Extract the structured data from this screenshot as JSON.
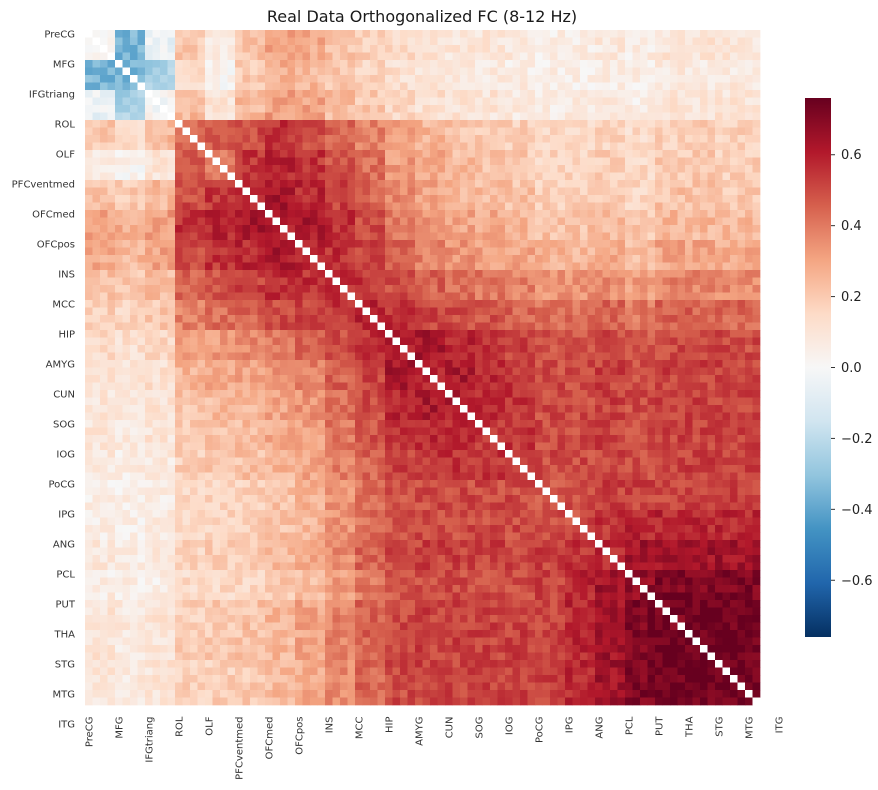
{
  "chart_data": {
    "type": "heatmap",
    "title": "Real Data Orthogonalized FC (8-12 Hz)",
    "matrix_size": 90,
    "row_labels": [
      "PreCG",
      "MFG",
      "IFGtriang",
      "ROL",
      "OLF",
      "PFCventmed",
      "OFCmed",
      "OFCpos",
      "INS",
      "MCC",
      "HIP",
      "AMYG",
      "CUN",
      "SOG",
      "IOG",
      "PoCG",
      "IPG",
      "ANG",
      "PCL",
      "PUT",
      "THA",
      "STG",
      "MTG",
      "ITG"
    ],
    "col_labels": [
      "PreCG",
      "MFG",
      "IFGtriang",
      "ROL",
      "OLF",
      "PFCventmed",
      "OFCmed",
      "OFCpos",
      "INS",
      "MCC",
      "HIP",
      "AMYG",
      "CUN",
      "SOG",
      "IOG",
      "PoCG",
      "IPG",
      "ANG",
      "PCL",
      "PUT",
      "THA",
      "STG",
      "MTG",
      "ITG"
    ],
    "label_step": 4,
    "colormap": "RdBu_r",
    "colorbar": {
      "vmin": -0.76,
      "vmax": 0.76,
      "ticks": [
        -0.6,
        -0.4,
        -0.2,
        0.0,
        0.2,
        0.4,
        0.6
      ],
      "tick_labels": [
        "−0.6",
        "−0.4",
        "−0.2",
        "0.0",
        "0.2",
        "0.4",
        "0.6"
      ]
    },
    "diagonal": "masked",
    "block_values": [
      [
        0.05,
        -0.35,
        -0.05,
        0.2,
        0.05,
        0.22,
        0.3,
        0.28,
        0.22,
        0.18,
        0.14,
        0.12,
        0.1,
        0.1,
        0.08,
        0.06,
        0.06,
        0.08,
        0.06,
        0.1,
        0.1,
        0.1,
        0.1,
        0.1
      ],
      [
        -0.35,
        -0.35,
        -0.25,
        0.15,
        0.02,
        0.2,
        0.28,
        0.25,
        0.2,
        0.16,
        0.12,
        0.1,
        0.08,
        0.08,
        0.06,
        0.05,
        0.05,
        0.06,
        0.05,
        0.08,
        0.08,
        0.08,
        0.08,
        0.08
      ],
      [
        -0.05,
        -0.25,
        0.0,
        0.25,
        0.1,
        0.25,
        0.32,
        0.3,
        0.24,
        0.2,
        0.15,
        0.12,
        0.1,
        0.1,
        0.08,
        0.06,
        0.06,
        0.08,
        0.06,
        0.1,
        0.1,
        0.1,
        0.1,
        0.1
      ],
      [
        0.2,
        0.15,
        0.25,
        0.45,
        0.45,
        0.5,
        0.55,
        0.5,
        0.45,
        0.38,
        0.3,
        0.25,
        0.22,
        0.2,
        0.18,
        0.15,
        0.15,
        0.16,
        0.14,
        0.18,
        0.18,
        0.18,
        0.16,
        0.16
      ],
      [
        0.05,
        0.02,
        0.1,
        0.45,
        0.4,
        0.55,
        0.58,
        0.55,
        0.48,
        0.42,
        0.32,
        0.28,
        0.24,
        0.22,
        0.2,
        0.16,
        0.16,
        0.18,
        0.15,
        0.2,
        0.2,
        0.18,
        0.18,
        0.18
      ],
      [
        0.22,
        0.2,
        0.25,
        0.5,
        0.55,
        0.58,
        0.62,
        0.58,
        0.52,
        0.45,
        0.36,
        0.3,
        0.26,
        0.24,
        0.22,
        0.18,
        0.18,
        0.2,
        0.16,
        0.22,
        0.22,
        0.2,
        0.2,
        0.2
      ],
      [
        0.3,
        0.28,
        0.32,
        0.55,
        0.58,
        0.62,
        0.6,
        0.62,
        0.56,
        0.5,
        0.4,
        0.34,
        0.3,
        0.28,
        0.25,
        0.22,
        0.22,
        0.24,
        0.2,
        0.25,
        0.25,
        0.24,
        0.24,
        0.24
      ],
      [
        0.28,
        0.25,
        0.3,
        0.5,
        0.55,
        0.58,
        0.62,
        0.58,
        0.56,
        0.52,
        0.44,
        0.38,
        0.34,
        0.32,
        0.3,
        0.26,
        0.26,
        0.28,
        0.24,
        0.3,
        0.3,
        0.28,
        0.28,
        0.28
      ],
      [
        0.22,
        0.2,
        0.24,
        0.45,
        0.48,
        0.52,
        0.56,
        0.56,
        0.55,
        0.55,
        0.5,
        0.45,
        0.42,
        0.4,
        0.38,
        0.34,
        0.34,
        0.36,
        0.32,
        0.38,
        0.38,
        0.36,
        0.36,
        0.36
      ],
      [
        0.18,
        0.16,
        0.2,
        0.38,
        0.42,
        0.45,
        0.5,
        0.52,
        0.55,
        0.58,
        0.56,
        0.52,
        0.5,
        0.48,
        0.45,
        0.42,
        0.42,
        0.44,
        0.4,
        0.45,
        0.45,
        0.44,
        0.44,
        0.44
      ],
      [
        0.14,
        0.12,
        0.15,
        0.3,
        0.32,
        0.36,
        0.4,
        0.44,
        0.5,
        0.56,
        0.6,
        0.62,
        0.58,
        0.55,
        0.52,
        0.48,
        0.48,
        0.5,
        0.46,
        0.5,
        0.5,
        0.5,
        0.5,
        0.5
      ],
      [
        0.12,
        0.1,
        0.12,
        0.25,
        0.28,
        0.3,
        0.34,
        0.38,
        0.45,
        0.52,
        0.62,
        0.6,
        0.62,
        0.58,
        0.55,
        0.5,
        0.5,
        0.52,
        0.48,
        0.52,
        0.52,
        0.52,
        0.52,
        0.52
      ],
      [
        0.1,
        0.08,
        0.1,
        0.22,
        0.24,
        0.26,
        0.3,
        0.34,
        0.42,
        0.5,
        0.58,
        0.62,
        0.6,
        0.58,
        0.55,
        0.5,
        0.5,
        0.52,
        0.5,
        0.52,
        0.52,
        0.52,
        0.52,
        0.52
      ],
      [
        0.1,
        0.08,
        0.1,
        0.2,
        0.22,
        0.24,
        0.28,
        0.32,
        0.4,
        0.48,
        0.55,
        0.58,
        0.58,
        0.55,
        0.55,
        0.5,
        0.5,
        0.52,
        0.5,
        0.52,
        0.52,
        0.52,
        0.52,
        0.52
      ],
      [
        0.08,
        0.06,
        0.08,
        0.18,
        0.2,
        0.22,
        0.25,
        0.3,
        0.38,
        0.45,
        0.52,
        0.55,
        0.55,
        0.55,
        0.52,
        0.5,
        0.5,
        0.52,
        0.5,
        0.52,
        0.52,
        0.52,
        0.52,
        0.52
      ],
      [
        0.06,
        0.05,
        0.06,
        0.15,
        0.16,
        0.18,
        0.22,
        0.26,
        0.34,
        0.42,
        0.48,
        0.5,
        0.5,
        0.5,
        0.5,
        0.48,
        0.5,
        0.52,
        0.52,
        0.52,
        0.52,
        0.52,
        0.52,
        0.52
      ],
      [
        0.06,
        0.05,
        0.06,
        0.15,
        0.16,
        0.18,
        0.22,
        0.26,
        0.34,
        0.42,
        0.48,
        0.5,
        0.5,
        0.5,
        0.5,
        0.5,
        0.5,
        0.55,
        0.58,
        0.58,
        0.58,
        0.58,
        0.58,
        0.58
      ],
      [
        0.08,
        0.06,
        0.08,
        0.16,
        0.18,
        0.2,
        0.24,
        0.28,
        0.36,
        0.44,
        0.5,
        0.52,
        0.52,
        0.52,
        0.52,
        0.52,
        0.55,
        0.58,
        0.64,
        0.64,
        0.64,
        0.64,
        0.64,
        0.64
      ],
      [
        0.06,
        0.05,
        0.06,
        0.14,
        0.15,
        0.16,
        0.2,
        0.24,
        0.32,
        0.4,
        0.46,
        0.48,
        0.5,
        0.5,
        0.5,
        0.52,
        0.58,
        0.64,
        0.68,
        0.72,
        0.72,
        0.72,
        0.72,
        0.72
      ],
      [
        0.1,
        0.08,
        0.1,
        0.18,
        0.2,
        0.22,
        0.25,
        0.3,
        0.38,
        0.45,
        0.5,
        0.52,
        0.52,
        0.52,
        0.52,
        0.52,
        0.58,
        0.64,
        0.72,
        0.72,
        0.75,
        0.74,
        0.74,
        0.74
      ],
      [
        0.1,
        0.08,
        0.1,
        0.18,
        0.2,
        0.22,
        0.25,
        0.3,
        0.38,
        0.45,
        0.5,
        0.52,
        0.52,
        0.52,
        0.52,
        0.52,
        0.58,
        0.64,
        0.72,
        0.75,
        0.72,
        0.74,
        0.74,
        0.74
      ],
      [
        0.1,
        0.08,
        0.1,
        0.18,
        0.18,
        0.2,
        0.24,
        0.28,
        0.36,
        0.44,
        0.5,
        0.52,
        0.52,
        0.52,
        0.52,
        0.52,
        0.58,
        0.64,
        0.72,
        0.74,
        0.74,
        0.72,
        0.72,
        0.72
      ],
      [
        0.1,
        0.08,
        0.1,
        0.16,
        0.18,
        0.2,
        0.24,
        0.28,
        0.36,
        0.44,
        0.5,
        0.52,
        0.52,
        0.52,
        0.52,
        0.52,
        0.58,
        0.64,
        0.72,
        0.74,
        0.74,
        0.72,
        0.7,
        0.7
      ],
      [
        0.1,
        0.08,
        0.1,
        0.16,
        0.18,
        0.2,
        0.24,
        0.28,
        0.36,
        0.44,
        0.5,
        0.52,
        0.52,
        0.52,
        0.52,
        0.52,
        0.58,
        0.64,
        0.72,
        0.74,
        0.74,
        0.72,
        0.7,
        0.68
      ]
    ]
  }
}
